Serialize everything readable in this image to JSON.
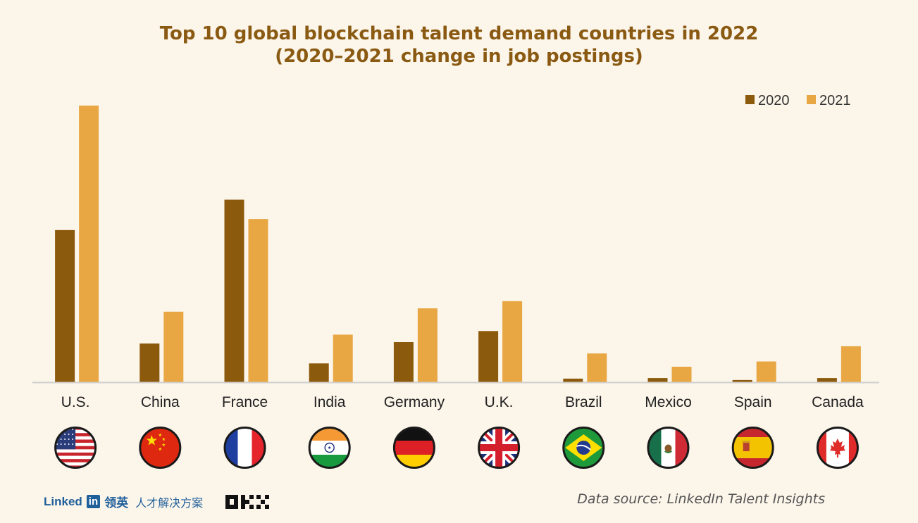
{
  "title_line1": "Top 10 global blockchain talent demand countries in 2022",
  "title_line2": "(2020–2021 change in job postings)",
  "colors": {
    "s2020": "#8c5a0c",
    "s2021": "#e8a743",
    "axis": "#cfcfcf",
    "title": "#8a5a12"
  },
  "chart_data": {
    "type": "bar",
    "title": "Top 10 global blockchain talent demand countries in 2022 (2020–2021 change in job postings)",
    "categories": [
      "U.S.",
      "China",
      "France",
      "India",
      "Germany",
      "U.K.",
      "Brazil",
      "Mexico",
      "Spain",
      "Canada"
    ],
    "series": [
      {
        "name": "2020",
        "values": [
          55,
          14,
          66,
          6.8,
          14.5,
          18.5,
          1.3,
          1.5,
          0.8,
          1.5
        ]
      },
      {
        "name": "2021",
        "values": [
          100,
          25.5,
          59,
          17.2,
          26.7,
          29.3,
          10.4,
          5.6,
          7.5,
          13
        ]
      }
    ],
    "ylim": [
      0,
      100
    ],
    "grid": false,
    "legend": "top-right",
    "flags": [
      "us-flag-icon",
      "china-flag-icon",
      "france-flag-icon",
      "india-flag-icon",
      "germany-flag-icon",
      "uk-flag-icon",
      "brazil-flag-icon",
      "mexico-flag-icon",
      "spain-flag-icon",
      "canada-flag-icon"
    ]
  },
  "footer": {
    "linkedin_word": "Linked",
    "linkedin_box": "in",
    "linkedin_cn": "领英",
    "linkedin_sub": "人才解决方案",
    "okx_logo": "okx-logo",
    "source": "Data source: LinkedIn Talent Insights"
  }
}
